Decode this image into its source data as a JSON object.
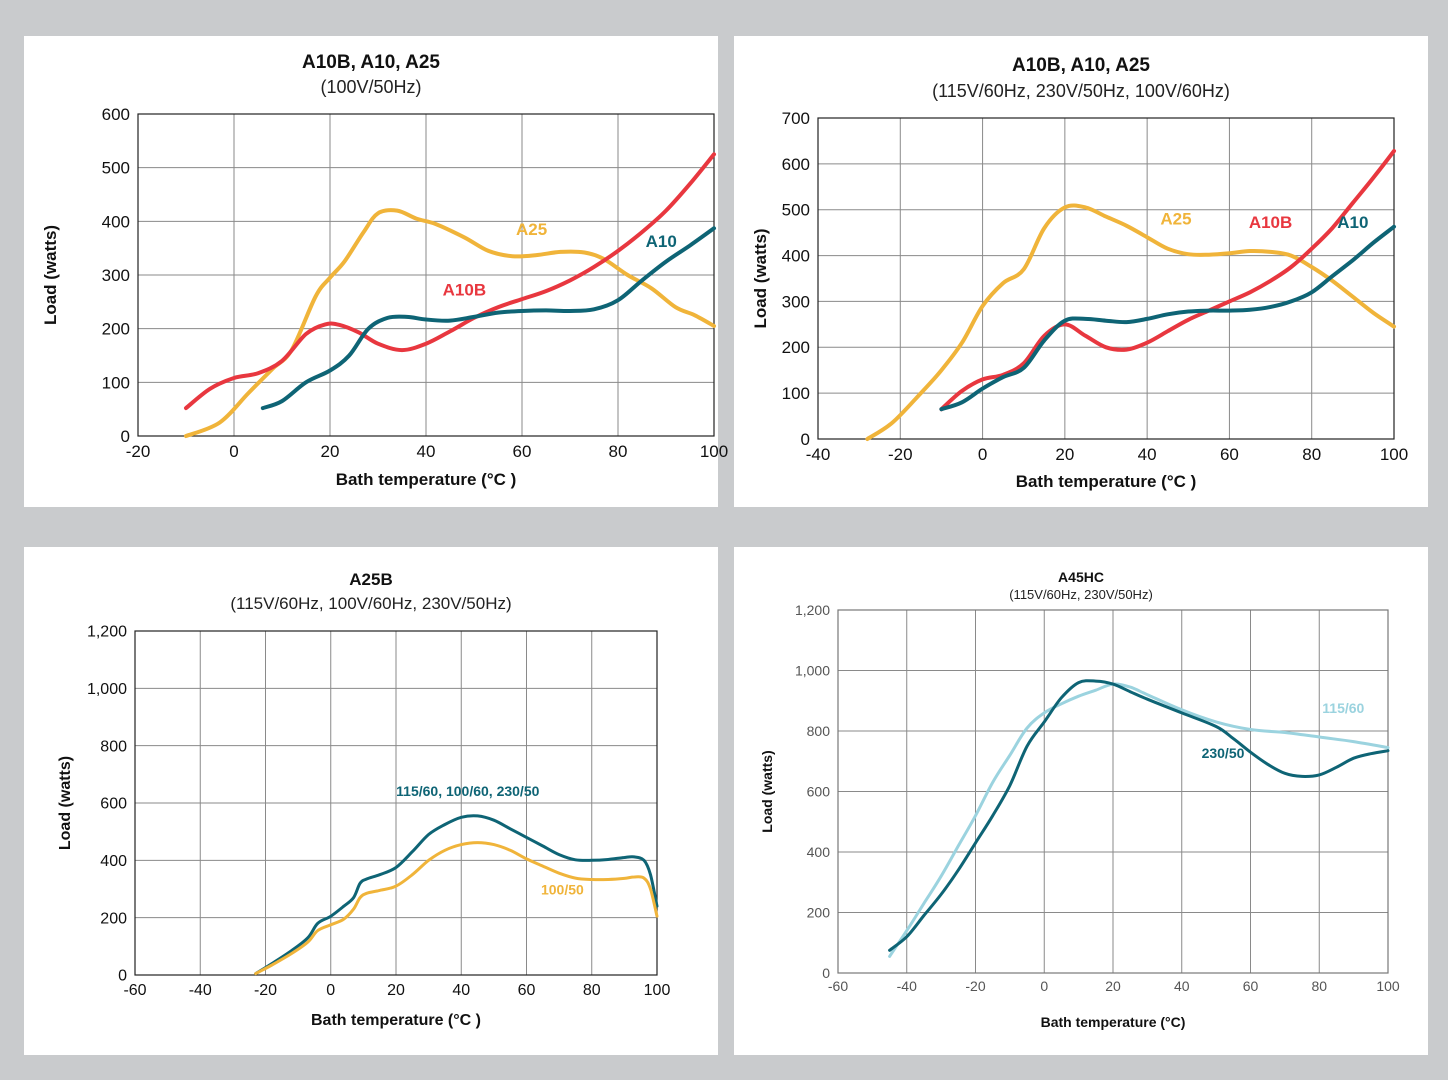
{
  "chart_data": [
    {
      "type": "line",
      "title": "A10B, A10, A25",
      "subtitle": "(100V/50Hz)",
      "xlabel": "Bath temperature (°C )",
      "ylabel": "Load (watts)",
      "xlim": [
        -20,
        100
      ],
      "ylim": [
        0,
        600
      ],
      "xticks": [
        "-20",
        "0",
        "20",
        "40",
        "60",
        "80",
        "100"
      ],
      "yticks": [
        "0",
        "100",
        "200",
        "300",
        "400",
        "500",
        "600"
      ],
      "grid": true,
      "series": [
        {
          "name": "A25",
          "color": "#f0b43a",
          "x": [
            -10,
            -3,
            3,
            8,
            12,
            17,
            20,
            23,
            27,
            30,
            34,
            38,
            42,
            48,
            53,
            58,
            63,
            68,
            73,
            77,
            82,
            87,
            92,
            96,
            100
          ],
          "y": [
            0,
            25,
            80,
            125,
            160,
            260,
            295,
            325,
            380,
            415,
            420,
            405,
            395,
            370,
            345,
            335,
            337,
            343,
            342,
            330,
            300,
            275,
            240,
            225,
            205
          ]
        },
        {
          "name": "A10B",
          "color": "#e8373f",
          "x": [
            -10,
            -5,
            0,
            5,
            10,
            15,
            19,
            22,
            26,
            30,
            35,
            40,
            45,
            50,
            55,
            60,
            65,
            70,
            75,
            80,
            85,
            90,
            95,
            100
          ],
          "y": [
            52,
            88,
            108,
            117,
            140,
            190,
            208,
            207,
            193,
            172,
            160,
            172,
            195,
            220,
            240,
            255,
            270,
            290,
            315,
            345,
            380,
            420,
            470,
            525
          ]
        },
        {
          "name": "A10",
          "color": "#0e6475",
          "x": [
            6,
            10,
            15,
            20,
            24,
            28,
            32,
            36,
            40,
            45,
            50,
            55,
            60,
            65,
            70,
            75,
            80,
            85,
            90,
            95,
            100
          ],
          "y": [
            52,
            65,
            100,
            122,
            150,
            200,
            220,
            222,
            217,
            215,
            222,
            230,
            233,
            234,
            233,
            236,
            253,
            290,
            325,
            355,
            387
          ]
        }
      ],
      "labels": [
        {
          "text": "A25",
          "x": 62,
          "y": 375,
          "color": "#f0b43a"
        },
        {
          "text": "A10B",
          "x": 48,
          "y": 262,
          "color": "#e8373f"
        },
        {
          "text": "A10",
          "x": 89,
          "y": 352,
          "color": "#0e6475"
        }
      ]
    },
    {
      "type": "line",
      "title": "A10B, A10, A25",
      "subtitle": "(115V/60Hz, 230V/50Hz, 100V/60Hz)",
      "xlabel": "Bath temperature (°C )",
      "ylabel": "Load (watts)",
      "xlim": [
        -40,
        100
      ],
      "ylim": [
        0,
        700
      ],
      "xticks": [
        "-40",
        "-20",
        "0",
        "20",
        "40",
        "60",
        "80",
        "100"
      ],
      "yticks": [
        "0",
        "100",
        "200",
        "300",
        "400",
        "500",
        "600",
        "700"
      ],
      "grid": true,
      "series": [
        {
          "name": "A25",
          "color": "#f0b43a",
          "x": [
            -28,
            -22,
            -15,
            -10,
            -5,
            0,
            5,
            10,
            15,
            20,
            25,
            30,
            35,
            40,
            45,
            50,
            55,
            60,
            65,
            70,
            75,
            80,
            85,
            90,
            95,
            100
          ],
          "y": [
            0,
            35,
            100,
            150,
            210,
            290,
            340,
            370,
            460,
            505,
            505,
            485,
            465,
            440,
            415,
            403,
            402,
            405,
            410,
            408,
            400,
            375,
            345,
            310,
            275,
            245
          ]
        },
        {
          "name": "A10B",
          "color": "#e8373f",
          "x": [
            -10,
            -5,
            0,
            5,
            10,
            15,
            20,
            25,
            30,
            35,
            40,
            45,
            50,
            55,
            60,
            65,
            70,
            75,
            80,
            85,
            90,
            95,
            100
          ],
          "y": [
            65,
            105,
            130,
            140,
            165,
            225,
            250,
            225,
            200,
            195,
            210,
            235,
            260,
            280,
            300,
            320,
            345,
            375,
            415,
            460,
            515,
            570,
            628
          ]
        },
        {
          "name": "A10",
          "color": "#0e6475",
          "x": [
            -10,
            -5,
            0,
            5,
            10,
            15,
            20,
            25,
            30,
            35,
            40,
            45,
            50,
            55,
            60,
            65,
            70,
            75,
            80,
            85,
            90,
            95,
            100
          ],
          "y": [
            65,
            80,
            110,
            135,
            155,
            215,
            258,
            262,
            258,
            255,
            262,
            272,
            278,
            280,
            280,
            282,
            288,
            300,
            320,
            355,
            390,
            428,
            463
          ]
        }
      ],
      "labels": [
        {
          "text": "A25",
          "x": 47,
          "y": 468,
          "color": "#f0b43a"
        },
        {
          "text": "A10B",
          "x": 70,
          "y": 460,
          "color": "#e8373f"
        },
        {
          "text": "A10",
          "x": 90,
          "y": 460,
          "color": "#0e6475"
        }
      ]
    },
    {
      "type": "line",
      "title": "A25B",
      "subtitle": "(115V/60Hz, 100V/60Hz, 230V/50Hz)",
      "xlabel": "Bath temperature (°C )",
      "ylabel": "Load (watts)",
      "xlim": [
        -60,
        100
      ],
      "ylim": [
        0,
        1200
      ],
      "xticks": [
        "-60",
        "-40",
        "-20",
        "0",
        "20",
        "40",
        "60",
        "80",
        "100"
      ],
      "yticks": [
        "0",
        "200",
        "400",
        "600",
        "800",
        "1,000",
        "1,200"
      ],
      "grid": true,
      "series": [
        {
          "name": "115/60, 100/60, 230/50",
          "color": "#0e6475",
          "x": [
            -23,
            -18,
            -12,
            -7,
            -4,
            0,
            4,
            7,
            9,
            11,
            15,
            20,
            25,
            30,
            35,
            40,
            45,
            50,
            55,
            60,
            65,
            70,
            75,
            80,
            85,
            90,
            93,
            96,
            98,
            100
          ],
          "y": [
            5,
            40,
            85,
            130,
            180,
            205,
            240,
            270,
            320,
            335,
            350,
            375,
            430,
            490,
            525,
            550,
            555,
            540,
            510,
            480,
            450,
            420,
            402,
            400,
            403,
            410,
            412,
            400,
            350,
            240
          ]
        },
        {
          "name": "100/50",
          "color": "#f0b43a",
          "x": [
            -23,
            -18,
            -12,
            -7,
            -4,
            0,
            4,
            7,
            9,
            11,
            15,
            20,
            25,
            30,
            35,
            40,
            45,
            50,
            55,
            60,
            65,
            70,
            75,
            80,
            85,
            90,
            93,
            96,
            98,
            100
          ],
          "y": [
            5,
            35,
            75,
            115,
            155,
            175,
            195,
            230,
            270,
            285,
            295,
            310,
            350,
            400,
            435,
            455,
            462,
            455,
            435,
            405,
            380,
            355,
            338,
            333,
            333,
            337,
            342,
            338,
            300,
            205
          ]
        }
      ],
      "labels": [
        {
          "text": "115/60, 100/60, 230/50",
          "x": 42,
          "y": 625,
          "color": "#0e6475"
        },
        {
          "text": "100/50",
          "x": 71,
          "y": 280,
          "color": "#f0b43a"
        }
      ]
    },
    {
      "type": "line",
      "title": "A45HC",
      "subtitle": "(115V/60Hz, 230V/50Hz)",
      "xlabel": "Bath temperature (°C)",
      "ylabel": "Load (watts)",
      "xlim": [
        -60,
        100
      ],
      "ylim": [
        0,
        1200
      ],
      "xticks": [
        "-60",
        "-40",
        "-20",
        "0",
        "20",
        "40",
        "60",
        "80",
        "100"
      ],
      "yticks": [
        "0",
        "200",
        "400",
        "600",
        "800",
        "1,000",
        "1,200"
      ],
      "grid": true,
      "series": [
        {
          "name": "115/60",
          "color": "#9bd3df",
          "x": [
            -45,
            -40,
            -35,
            -30,
            -25,
            -20,
            -15,
            -10,
            -5,
            0,
            5,
            10,
            15,
            20,
            25,
            30,
            40,
            50,
            60,
            70,
            80,
            90,
            100
          ],
          "y": [
            55,
            140,
            230,
            320,
            420,
            520,
            630,
            720,
            810,
            860,
            890,
            915,
            935,
            955,
            945,
            920,
            870,
            830,
            805,
            795,
            780,
            765,
            745
          ]
        },
        {
          "name": "230/50",
          "color": "#0e6475",
          "x": [
            -45,
            -40,
            -35,
            -30,
            -25,
            -20,
            -15,
            -10,
            -5,
            0,
            5,
            10,
            15,
            20,
            25,
            30,
            40,
            50,
            55,
            60,
            65,
            70,
            75,
            80,
            85,
            90,
            95,
            100
          ],
          "y": [
            75,
            120,
            190,
            260,
            340,
            430,
            520,
            620,
            750,
            830,
            910,
            960,
            965,
            955,
            930,
            905,
            860,
            815,
            775,
            730,
            690,
            660,
            650,
            655,
            680,
            710,
            725,
            735
          ]
        }
      ],
      "labels": [
        {
          "text": "115/60",
          "x": 87,
          "y": 860,
          "color": "#9bd3df"
        },
        {
          "text": "230/50",
          "x": 52,
          "y": 710,
          "color": "#0e6475"
        }
      ]
    }
  ]
}
